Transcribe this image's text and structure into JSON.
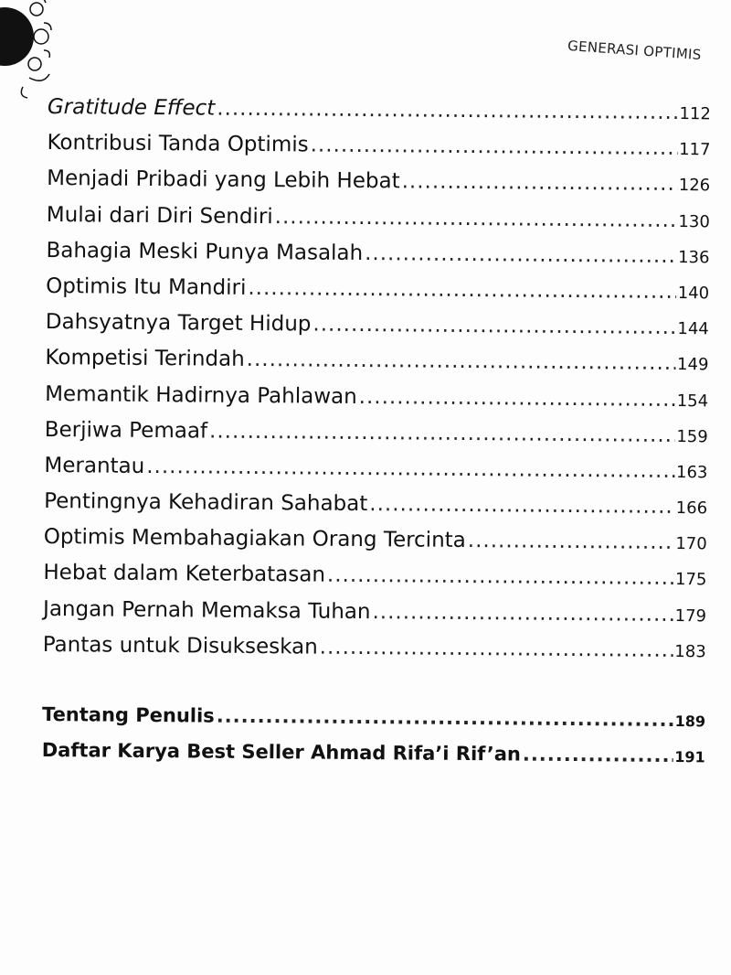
{
  "header": {
    "running_title": "GENERASI OPTIMIS"
  },
  "toc": {
    "entries": [
      {
        "title": "Gratitude Effect",
        "page": "112",
        "italic": true
      },
      {
        "title": "Kontribusi Tanda Optimis",
        "page": "117"
      },
      {
        "title": "Menjadi Pribadi yang Lebih Hebat",
        "page": "126"
      },
      {
        "title": "Mulai dari Diri Sendiri",
        "page": "130"
      },
      {
        "title": "Bahagia Meski Punya Masalah",
        "page": "136"
      },
      {
        "title": "Optimis Itu Mandiri",
        "page": "140"
      },
      {
        "title": "Dahsyatnya Target Hidup",
        "page": "144"
      },
      {
        "title": "Kompetisi Terindah",
        "page": "149"
      },
      {
        "title": "Memantik Hadirnya Pahlawan",
        "page": "154"
      },
      {
        "title": "Berjiwa Pemaaf",
        "page": "159"
      },
      {
        "title": "Merantau",
        "page": "163"
      },
      {
        "title": "Pentingnya Kehadiran Sahabat",
        "page": "166"
      },
      {
        "title": "Optimis Membahagiakan Orang Tercinta",
        "page": "170"
      },
      {
        "title": "Hebat dalam Keterbatasan",
        "page": "175"
      },
      {
        "title": "Jangan Pernah Memaksa Tuhan",
        "page": "179"
      },
      {
        "title": "Pantas untuk Disukseskan",
        "page": "183"
      }
    ],
    "back_matter": [
      {
        "title": "Tentang Penulis",
        "page": "189"
      },
      {
        "title": "Daftar Karya Best Seller Ahmad Rifa’i Rif’an",
        "page": "191"
      }
    ]
  }
}
